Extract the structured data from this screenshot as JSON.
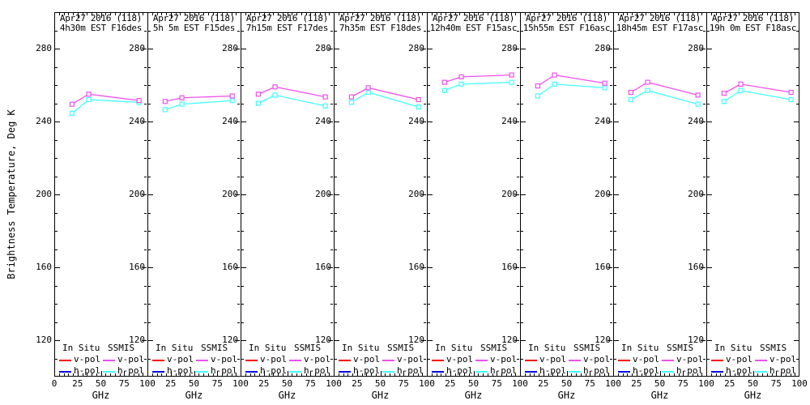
{
  "chart_data": {
    "type": "line",
    "title": "",
    "xlabel": "GHz",
    "ylabel": "Brightness Temperature, Deg K",
    "xlim": [
      0,
      100
    ],
    "ylim": [
      100,
      300
    ],
    "x_major_ticks": [
      0,
      25,
      50,
      75,
      100
    ],
    "x_minor_step": 5,
    "y_major_ticks": [
      280,
      240,
      200,
      160,
      120
    ],
    "y_minor_step": 10,
    "grid": false,
    "marker": "open-square",
    "frequencies_ghz": [
      19,
      37,
      91
    ],
    "legend": {
      "position": "bottom-inside-each-panel",
      "groups": [
        {
          "name": "In Situ",
          "entries": [
            {
              "label": "v-pol",
              "color": "#ff0000"
            },
            {
              "label": "h-pol",
              "color": "#0000dd"
            }
          ]
        },
        {
          "name": "SSMIS",
          "entries": [
            {
              "label": "v-pol",
              "color": "#ee50ee"
            },
            {
              "label": "h-pol",
              "color": "#40ffff"
            }
          ]
        }
      ]
    },
    "panels": [
      {
        "title_line1": "Apr27 2016 (118)",
        "title_line2": "4h30m EST F16des",
        "series": [
          {
            "name": "SSMIS v-pol",
            "color": "#ee50ee",
            "values": [
              249.5,
              255,
              251.5
            ]
          },
          {
            "name": "SSMIS h-pol",
            "color": "#40ffff",
            "values": [
              244.5,
              252,
              250.5
            ]
          }
        ]
      },
      {
        "title_line1": "Apr27 2016 (118)",
        "title_line2": "5h 5m EST F15des",
        "series": [
          {
            "name": "SSMIS v-pol",
            "color": "#ee50ee",
            "values": [
              251,
              253,
              254
            ]
          },
          {
            "name": "SSMIS h-pol",
            "color": "#40ffff",
            "values": [
              246.5,
              249.5,
              251.5
            ]
          }
        ]
      },
      {
        "title_line1": "Apr27 2016 (118)",
        "title_line2": "7h15m EST F17des",
        "series": [
          {
            "name": "SSMIS v-pol",
            "color": "#ee50ee",
            "values": [
              255,
              259,
              253.5
            ]
          },
          {
            "name": "SSMIS h-pol",
            "color": "#40ffff",
            "values": [
              250,
              254.5,
              248.5
            ]
          }
        ]
      },
      {
        "title_line1": "Apr27 2016 (118)",
        "title_line2": "7h35m EST F18des",
        "series": [
          {
            "name": "SSMIS v-pol",
            "color": "#ee50ee",
            "values": [
              253.5,
              258.5,
              252
            ]
          },
          {
            "name": "SSMIS h-pol",
            "color": "#40ffff",
            "values": [
              250.5,
              256,
              248
            ]
          }
        ]
      },
      {
        "title_line1": "Apr27 2016 (118)",
        "title_line2": "12h40m EST F15asc",
        "series": [
          {
            "name": "SSMIS v-pol",
            "color": "#ee50ee",
            "values": [
              261.5,
              264.5,
              265.5
            ]
          },
          {
            "name": "SSMIS h-pol",
            "color": "#40ffff",
            "values": [
              257,
              260.5,
              261.5
            ]
          }
        ]
      },
      {
        "title_line1": "Apr27 2016 (118)",
        "title_line2": "15h55m EST F16asc",
        "series": [
          {
            "name": "SSMIS v-pol",
            "color": "#ee50ee",
            "values": [
              259.5,
              265.5,
              261
            ]
          },
          {
            "name": "SSMIS h-pol",
            "color": "#40ffff",
            "values": [
              254,
              260.5,
              258.5
            ]
          }
        ]
      },
      {
        "title_line1": "Apr27 2016 (118)",
        "title_line2": "18h45m EST F17asc",
        "series": [
          {
            "name": "SSMIS v-pol",
            "color": "#ee50ee",
            "values": [
              256,
              261.5,
              254.5
            ]
          },
          {
            "name": "SSMIS h-pol",
            "color": "#40ffff",
            "values": [
              252,
              257,
              249.5
            ]
          }
        ]
      },
      {
        "title_line1": "Apr27 2016 (118)",
        "title_line2": "19h 0m EST F18asc",
        "series": [
          {
            "name": "SSMIS v-pol",
            "color": "#ee50ee",
            "values": [
              255.5,
              260.5,
              256
            ]
          },
          {
            "name": "SSMIS h-pol",
            "color": "#40ffff",
            "values": [
              251,
              257,
              252
            ]
          }
        ]
      }
    ]
  }
}
